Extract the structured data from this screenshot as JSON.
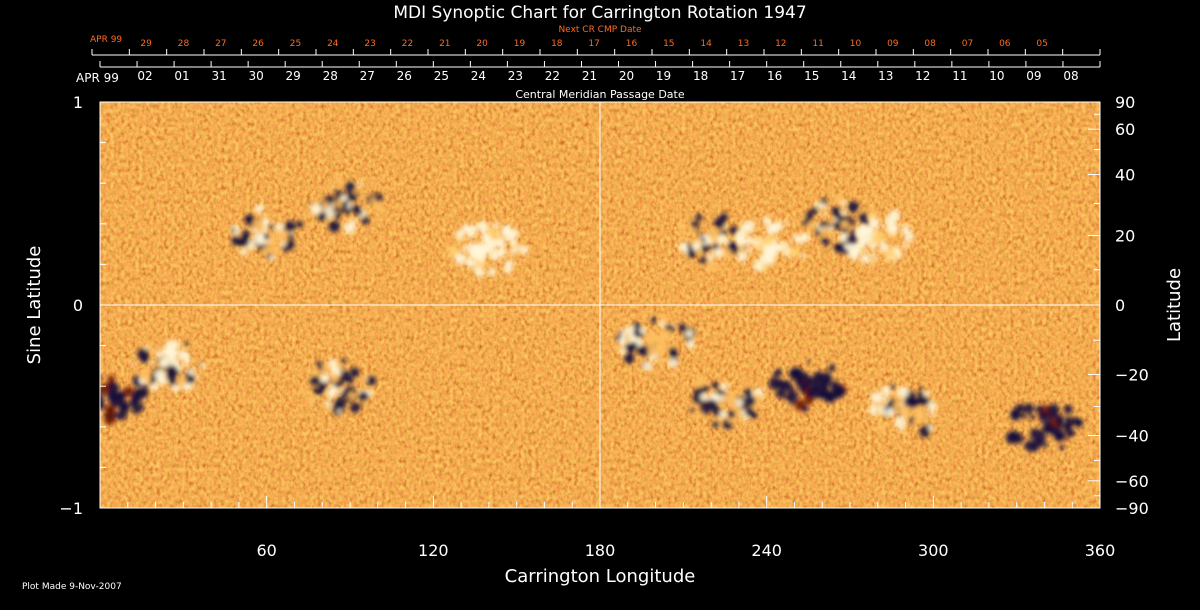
{
  "chart_data": {
    "type": "heatmap",
    "title": "MDI Synoptic Chart for Carrington Rotation 1947",
    "xlabel": "Carrington Longitude",
    "ylabel_left": "Sine Latitude",
    "ylabel_right": "Latitude",
    "xlim": [
      0,
      360
    ],
    "ylim": [
      -1,
      1
    ],
    "x_ticks": [
      "60",
      "120",
      "180",
      "240",
      "300",
      "360"
    ],
    "y_ticks_left": [
      "1",
      "0",
      "−1"
    ],
    "y_ticks_right": [
      "90",
      "60",
      "40",
      "20",
      "0",
      "−20",
      "−40",
      "−60",
      "−90"
    ],
    "top_axis_inner": {
      "month_label": "APR 99",
      "label": "Central Meridian Passage Date",
      "days": [
        "02",
        "01",
        "31",
        "30",
        "29",
        "28",
        "27",
        "26",
        "25",
        "24",
        "23",
        "22",
        "21",
        "20",
        "19",
        "18",
        "17",
        "16",
        "15",
        "14",
        "13",
        "12",
        "11",
        "10",
        "09",
        "08"
      ]
    },
    "top_axis_outer": {
      "month_label": "APR 99",
      "label": "Next CR CMP Date",
      "days": [
        "29",
        "28",
        "27",
        "26",
        "25",
        "24",
        "23",
        "22",
        "21",
        "20",
        "19",
        "18",
        "17",
        "16",
        "15",
        "14",
        "13",
        "12",
        "11",
        "10",
        "09",
        "08",
        "07",
        "06",
        "05"
      ]
    },
    "colorscale": [
      "#1a1040",
      "#8c1a00",
      "#e84a10",
      "#ff7a20",
      "#ffd080",
      "#ffffff"
    ],
    "active_regions": [
      {
        "lon": 60,
        "sinlat": 0.35,
        "polarity": "mixed"
      },
      {
        "lon": 88,
        "sinlat": 0.5,
        "polarity": "mixed"
      },
      {
        "lon": 140,
        "sinlat": 0.28,
        "polarity": "positive"
      },
      {
        "lon": 220,
        "sinlat": 0.32,
        "polarity": "mixed"
      },
      {
        "lon": 242,
        "sinlat": 0.3,
        "polarity": "positive"
      },
      {
        "lon": 265,
        "sinlat": 0.4,
        "polarity": "mixed"
      },
      {
        "lon": 280,
        "sinlat": 0.33,
        "polarity": "positive"
      },
      {
        "lon": 5,
        "sinlat": -0.45,
        "polarity": "negative"
      },
      {
        "lon": 25,
        "sinlat": -0.3,
        "polarity": "mixed"
      },
      {
        "lon": 85,
        "sinlat": -0.4,
        "polarity": "mixed"
      },
      {
        "lon": 200,
        "sinlat": -0.18,
        "polarity": "mixed"
      },
      {
        "lon": 225,
        "sinlat": -0.47,
        "polarity": "mixed"
      },
      {
        "lon": 255,
        "sinlat": -0.4,
        "polarity": "negative"
      },
      {
        "lon": 290,
        "sinlat": -0.52,
        "polarity": "mixed"
      },
      {
        "lon": 340,
        "sinlat": -0.6,
        "polarity": "negative"
      }
    ]
  },
  "footer": {
    "plot_made": "Plot Made  9-Nov-2007"
  }
}
